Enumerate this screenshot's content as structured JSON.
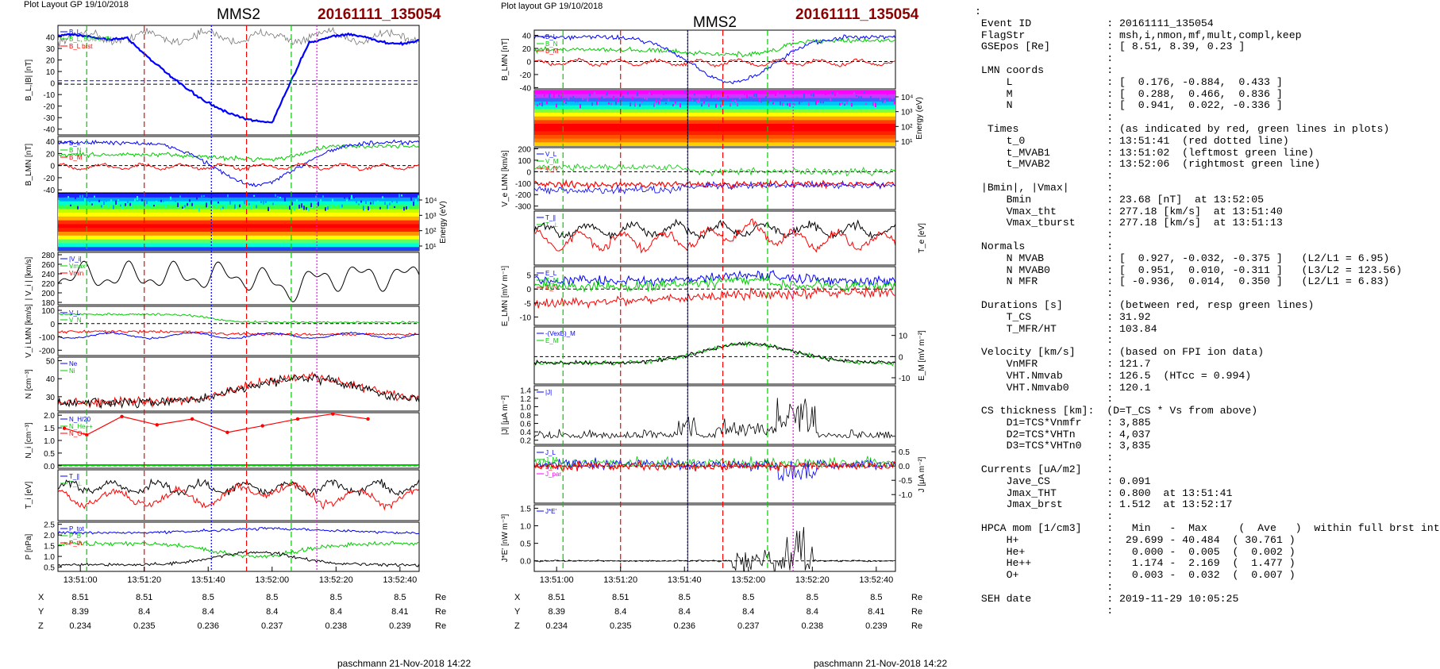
{
  "page": {
    "left_header": "Plot Layout GP 19/10/2018",
    "mid_header": "Plot layout GP 19/10/2018",
    "spacecraft": "MMS2",
    "event_id": "20161111_135054",
    "footer": "paschmann 21-Nov-2018 14:22"
  },
  "colors": {
    "black": "#000000",
    "red": "#ff0000",
    "green": "#00cc00",
    "blue": "#0000ff",
    "event": "#8b0000",
    "magenta": "#ff00ff",
    "gray": "#999999"
  },
  "time_axis": {
    "ticks": [
      "13:51:00",
      "13:51:20",
      "13:51:40",
      "13:52:00",
      "13:52:20",
      "13:52:40"
    ],
    "orbit": {
      "X": {
        "label": "X",
        "unit": "Re",
        "values": [
          "8.51",
          "8.51",
          "8.5",
          "8.5",
          "8.5",
          "8.5"
        ]
      },
      "Y": {
        "label": "Y",
        "unit": "Re",
        "values": [
          "8.39",
          "8.4",
          "8.4",
          "8.4",
          "8.4",
          "8.41"
        ]
      },
      "Z": {
        "label": "Z",
        "unit": "Re",
        "values": [
          "0.234",
          "0.235",
          "0.236",
          "0.237",
          "0.238",
          "0.239"
        ]
      }
    }
  },
  "chart_data": [
    {
      "type": "line",
      "title": "MMS2 20161111_135054 (left column)",
      "x_range": [
        "13:50:53",
        "13:52:46"
      ],
      "marker_times": {
        "red_dashed": [
          "13:51:20",
          "13:51:52"
        ],
        "green_dashed": [
          "13:51:02",
          "13:52:06"
        ],
        "blue_dotted": "13:51:41",
        "magenta_dotted": "13:52:14",
        "red_dotted": "13:51:41"
      },
      "panels": [
        {
          "id": "BL_B",
          "ylabel": "B_L,|B| [nT]",
          "ylim": [
            -45,
            50
          ],
          "yticks": [
            "40",
            "30",
            "20",
            "10",
            "0",
            "-10",
            "-20",
            "-30",
            "-40"
          ],
          "legend": [
            "B_L",
            "B_L, 50% of BL",
            "B_L brst"
          ],
          "legend_other": [
            "B_L",
            "B_L brst"
          ]
        },
        {
          "id": "B_LMN",
          "ylabel": "B_LMN [nT]",
          "ylim": [
            -45,
            48
          ],
          "yticks": [
            "40",
            "20",
            "0",
            "-20",
            "-40"
          ],
          "legend": [
            "B_L",
            "B_N",
            "B_M"
          ]
        },
        {
          "id": "ion_spec",
          "type": "heatmap",
          "ylabel": "Energy (eV)",
          "yticks": [
            "10⁴",
            "10³",
            "10²",
            "10¹"
          ]
        },
        {
          "id": "Vi",
          "ylabel": "| V_i | [km/s]",
          "ylim": [
            175,
            285
          ],
          "yticks": [
            "280",
            "260",
            "240",
            "220",
            "200",
            "180"
          ],
          "legend": [
            "|V_i|",
            "Vmax",
            "Vmin"
          ]
        },
        {
          "id": "Vi_LMN",
          "ylabel": "V_i LMN [km/s]",
          "ylim": [
            -240,
            130
          ],
          "yticks": [
            "100",
            "0",
            "-100",
            "-200"
          ],
          "legend": [
            "V_L",
            "V_N"
          ]
        },
        {
          "id": "N",
          "ylabel": "N [cm⁻³]",
          "ylim": [
            22,
            52
          ],
          "yticks": [
            "50",
            "40",
            "30"
          ],
          "legend": [
            "Ne",
            "Ni"
          ]
        },
        {
          "id": "Ni_hpca",
          "ylabel": "N_i [cm⁻³]",
          "ylim": [
            -0.1,
            2.1
          ],
          "yticks": [
            "2.0",
            "1.5",
            "1.0",
            "0.5",
            "0.0"
          ],
          "legend": [
            "N_H/20",
            "N_He++",
            "N_O+"
          ],
          "series": [
            {
              "name": "N_He++",
              "x": [
                "13:50:55",
                "13:51:02",
                "13:51:13",
                "13:51:24",
                "13:51:35",
                "13:51:46",
                "13:51:57",
                "13:52:08",
                "13:52:19",
                "13:52:30"
              ],
              "values": [
                1.48,
                1.22,
                1.95,
                1.62,
                1.85,
                1.32,
                1.58,
                1.85,
                2.05,
                1.85
              ]
            }
          ]
        },
        {
          "id": "Ti",
          "ylabel": "T_i [eV]",
          "legend": [
            "T_∥",
            "T_⊥"
          ]
        },
        {
          "id": "P",
          "ylabel": "P [nPa]",
          "ylim": [
            0.3,
            2.6
          ],
          "yticks": [
            "2.5",
            "2.0",
            "1.5",
            "1.0",
            "0.5"
          ],
          "legend": [
            "P_tot",
            "P_B",
            "P_th"
          ]
        }
      ]
    },
    {
      "type": "line",
      "title": "MMS2 20161111_135054 (middle column)",
      "x_range": [
        "13:50:53",
        "13:52:46"
      ],
      "marker_times": {
        "red_dashed": [
          "13:51:20",
          "13:51:52"
        ],
        "green_dashed": [
          "13:51:02",
          "13:52:06"
        ],
        "blue_dotted": "13:51:41",
        "magenta_dotted": "13:52:14",
        "black_solid": "13:51:41"
      },
      "panels": [
        {
          "id": "B_LMN",
          "ylabel": "B_LMN [nT]",
          "ylim": [
            -42,
            48
          ],
          "yticks": [
            "40",
            "20",
            "0",
            "-20",
            "-40"
          ],
          "legend": [
            "B_L",
            "B_N",
            "B_M"
          ]
        },
        {
          "id": "e_spec",
          "type": "heatmap",
          "ylabel": "Energy (eV)",
          "yticks": [
            "10⁴",
            "10³",
            "10²",
            "10¹"
          ]
        },
        {
          "id": "Ve",
          "ylabel": "V_e LMN [km/s]",
          "ylim": [
            -330,
            210
          ],
          "yticks": [
            "200",
            "100",
            "0",
            "-100",
            "-200",
            "-300"
          ],
          "legend": [
            "V_L",
            "V_M",
            "V_N"
          ]
        },
        {
          "id": "Te",
          "ylabel": "T_e [eV]",
          "legend": [
            "T_∥",
            "T_⊥"
          ]
        },
        {
          "id": "E_LMN",
          "ylabel": "E_LMN [mV m⁻¹]",
          "ylim": [
            -13,
            8
          ],
          "yticks": [
            "5",
            "0",
            "-5",
            "-10"
          ],
          "legend": [
            "E_L",
            "E_M",
            "E_N"
          ]
        },
        {
          "id": "EM",
          "ylabel": "E_M [mV m⁻²]",
          "ylim": [
            -13,
            14
          ],
          "yticks": [
            "10",
            "0",
            "-10"
          ],
          "legend": [
            "-(VexB)_M",
            "E_M"
          ]
        },
        {
          "id": "absJ",
          "ylabel": "|J| [μA m⁻²]",
          "ylim": [
            0.1,
            1.5
          ],
          "yticks": [
            "1.4",
            "1.2",
            "1.0",
            "0.8",
            "0.6",
            "0.4",
            "0.2"
          ],
          "legend": [
            "|J|"
          ]
        },
        {
          "id": "J",
          "ylabel": "J [μA m⁻²]",
          "ylim": [
            -1.3,
            0.7
          ],
          "yticks": [
            "0.5",
            "0.0",
            "-0.5",
            "-1.0"
          ],
          "legend": [
            "J_L",
            "J_M",
            "J_N",
            "J_par"
          ]
        },
        {
          "id": "JE",
          "ylabel": "J*E' [nW m⁻³]",
          "ylim": [
            -0.3,
            1.6
          ],
          "yticks": [
            "1.5",
            "1.0",
            "0.5",
            "0.0"
          ],
          "legend": [
            "J*E'"
          ]
        }
      ]
    }
  ],
  "summary": {
    "lead": ":",
    "lines": [
      " Event ID            : 20161111_135054",
      " FlagStr             : msh,i,nmon,mf,mult,compl,keep",
      " GSEpos [Re]         : [ 8.51, 8.39, 0.23 ]",
      "                     :",
      " LMN coords          :",
      "     L               : [  0.176, -0.884,  0.433 ]",
      "     M               : [  0.288,  0.466,  0.836 ]",
      "     N               : [  0.941,  0.022, -0.336 ]",
      "                     :",
      "  Times              : (as indicated by red, green lines in plots)",
      "     t_0             : 13:51:41  (red dotted line)",
      "     t_MVAB1         : 13:51:02  (leftmost green line)",
      "     t_MVAB2         : 13:52:06  (rightmost green line)",
      "                     :",
      " |Bmin|, |Vmax|      :",
      "     Bmin            : 23.68 [nT]  at 13:52:05",
      "     Vmax_tht        : 277.18 [km/s]  at 13:51:40",
      "     Vmax_tburst     : 277.18 [km/s]  at 13:51:13",
      "                     :",
      " Normals             :",
      "     N MVAB          : [  0.927, -0.032, -0.375 ]   (L2/L1 = 6.95)",
      "     N MVAB0         : [  0.951,  0.010, -0.311 ]   (L3/L2 = 123.56)",
      "     N MFR           : [ -0.936,  0.014,  0.350 ]   (L2/L1 = 6.83)",
      "                     :",
      " Durations [s]       : (between red, resp green lines)",
      "     T_CS            : 31.92",
      "     T_MFR/HT        : 103.84",
      "                     :",
      " Velocity [km/s]     : (based on FPI ion data)",
      "     VnMFR           : 121.7",
      "     VHT.Nmvab       : 126.5  (HTcc = 0.994)",
      "     VHT.Nmvab0      : 120.1",
      "                     :",
      " CS thickness [km]:  (D=T_CS * Vs from above)",
      "     D1=TCS*Vnmfr    : 3,885",
      "     D2=TCS*VHTn     : 4,037",
      "     D3=TCS*VHTn0    : 3,835",
      "                     :",
      " Currents [uA/m2]    :",
      "     Jave_CS         : 0.091",
      "     Jmax_THT        : 0.800  at 13:51:41",
      "     Jmax_brst       : 1.512  at 13:52:17",
      "                     :",
      " HPCA mom [1/cm3]    :   Min   -  Max     (  Ave   )  within full brst int",
      "     H+              :  29.699 - 40.484  ( 30.761 )",
      "     He+             :   0.000 -  0.005  (  0.002 )",
      "     He++            :   1.174 -  2.169  (  1.477 )",
      "     O+              :   0.003 -  0.032  (  0.007 )",
      "                     :",
      " SEH date            : 2019-11-29 10:05:25",
      "                     :"
    ]
  }
}
